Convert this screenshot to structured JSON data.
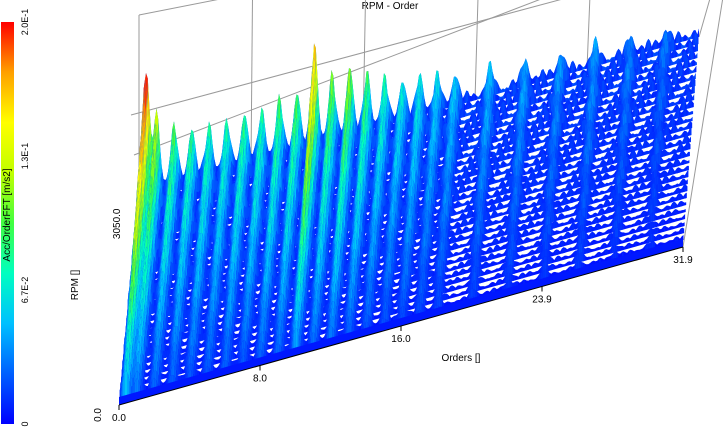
{
  "chart_data": {
    "type": "3d-surface (waterfall / order map)",
    "title": "RPM - Order",
    "xlabel": "Orders []",
    "ylabel": "RPM []",
    "colorbar_label": "Acc/OrderFFT [m/s2]",
    "x_ticks": [
      "0.0",
      "8.0",
      "16.0",
      "23.9",
      "31.9"
    ],
    "y_ticks": [
      "0.0",
      "3050.0"
    ],
    "colorbar_ticks": [
      "0",
      "6.7E-2",
      "1.3E-1",
      "2.0E-1"
    ],
    "x_range": [
      0,
      31.9
    ],
    "y_range": [
      0,
      3050
    ],
    "z_range": [
      0,
      0.2
    ],
    "colormap": [
      "#0000ff",
      "#0060ff",
      "#00c0ff",
      "#00ffc0",
      "#40ff40",
      "#c0ff00",
      "#ffff00",
      "#ffa000",
      "#ff0000"
    ],
    "peak_orders": [
      {
        "order": 0.4,
        "max_amplitude": 0.2
      },
      {
        "order": 1.0,
        "max_amplitude": 0.12
      },
      {
        "order": 2.0,
        "max_amplitude": 0.09
      },
      {
        "order": 3.0,
        "max_amplitude": 0.08
      },
      {
        "order": 4.0,
        "max_amplitude": 0.075
      },
      {
        "order": 5.0,
        "max_amplitude": 0.07
      },
      {
        "order": 6.0,
        "max_amplitude": 0.08
      },
      {
        "order": 7.0,
        "max_amplitude": 0.075
      },
      {
        "order": 8.0,
        "max_amplitude": 0.085
      },
      {
        "order": 9.0,
        "max_amplitude": 0.09
      },
      {
        "order": 10.0,
        "max_amplitude": 0.16
      },
      {
        "order": 11.0,
        "max_amplitude": 0.1
      },
      {
        "order": 12.0,
        "max_amplitude": 0.11
      },
      {
        "order": 13.0,
        "max_amplitude": 0.09
      },
      {
        "order": 14.0,
        "max_amplitude": 0.07
      },
      {
        "order": 15.0,
        "max_amplitude": 0.06
      },
      {
        "order": 16.0,
        "max_amplitude": 0.06
      },
      {
        "order": 17.0,
        "max_amplitude": 0.05
      },
      {
        "order": 18.0,
        "max_amplitude": 0.045
      },
      {
        "order": 20.0,
        "max_amplitude": 0.04
      },
      {
        "order": 22.0,
        "max_amplitude": 0.035
      },
      {
        "order": 24.0,
        "max_amplitude": 0.03
      },
      {
        "order": 26.0,
        "max_amplitude": 0.03
      },
      {
        "order": 28.0,
        "max_amplitude": 0.025
      },
      {
        "order": 30.0,
        "max_amplitude": 0.02
      }
    ],
    "grid": true,
    "legend": "colorbar left"
  }
}
